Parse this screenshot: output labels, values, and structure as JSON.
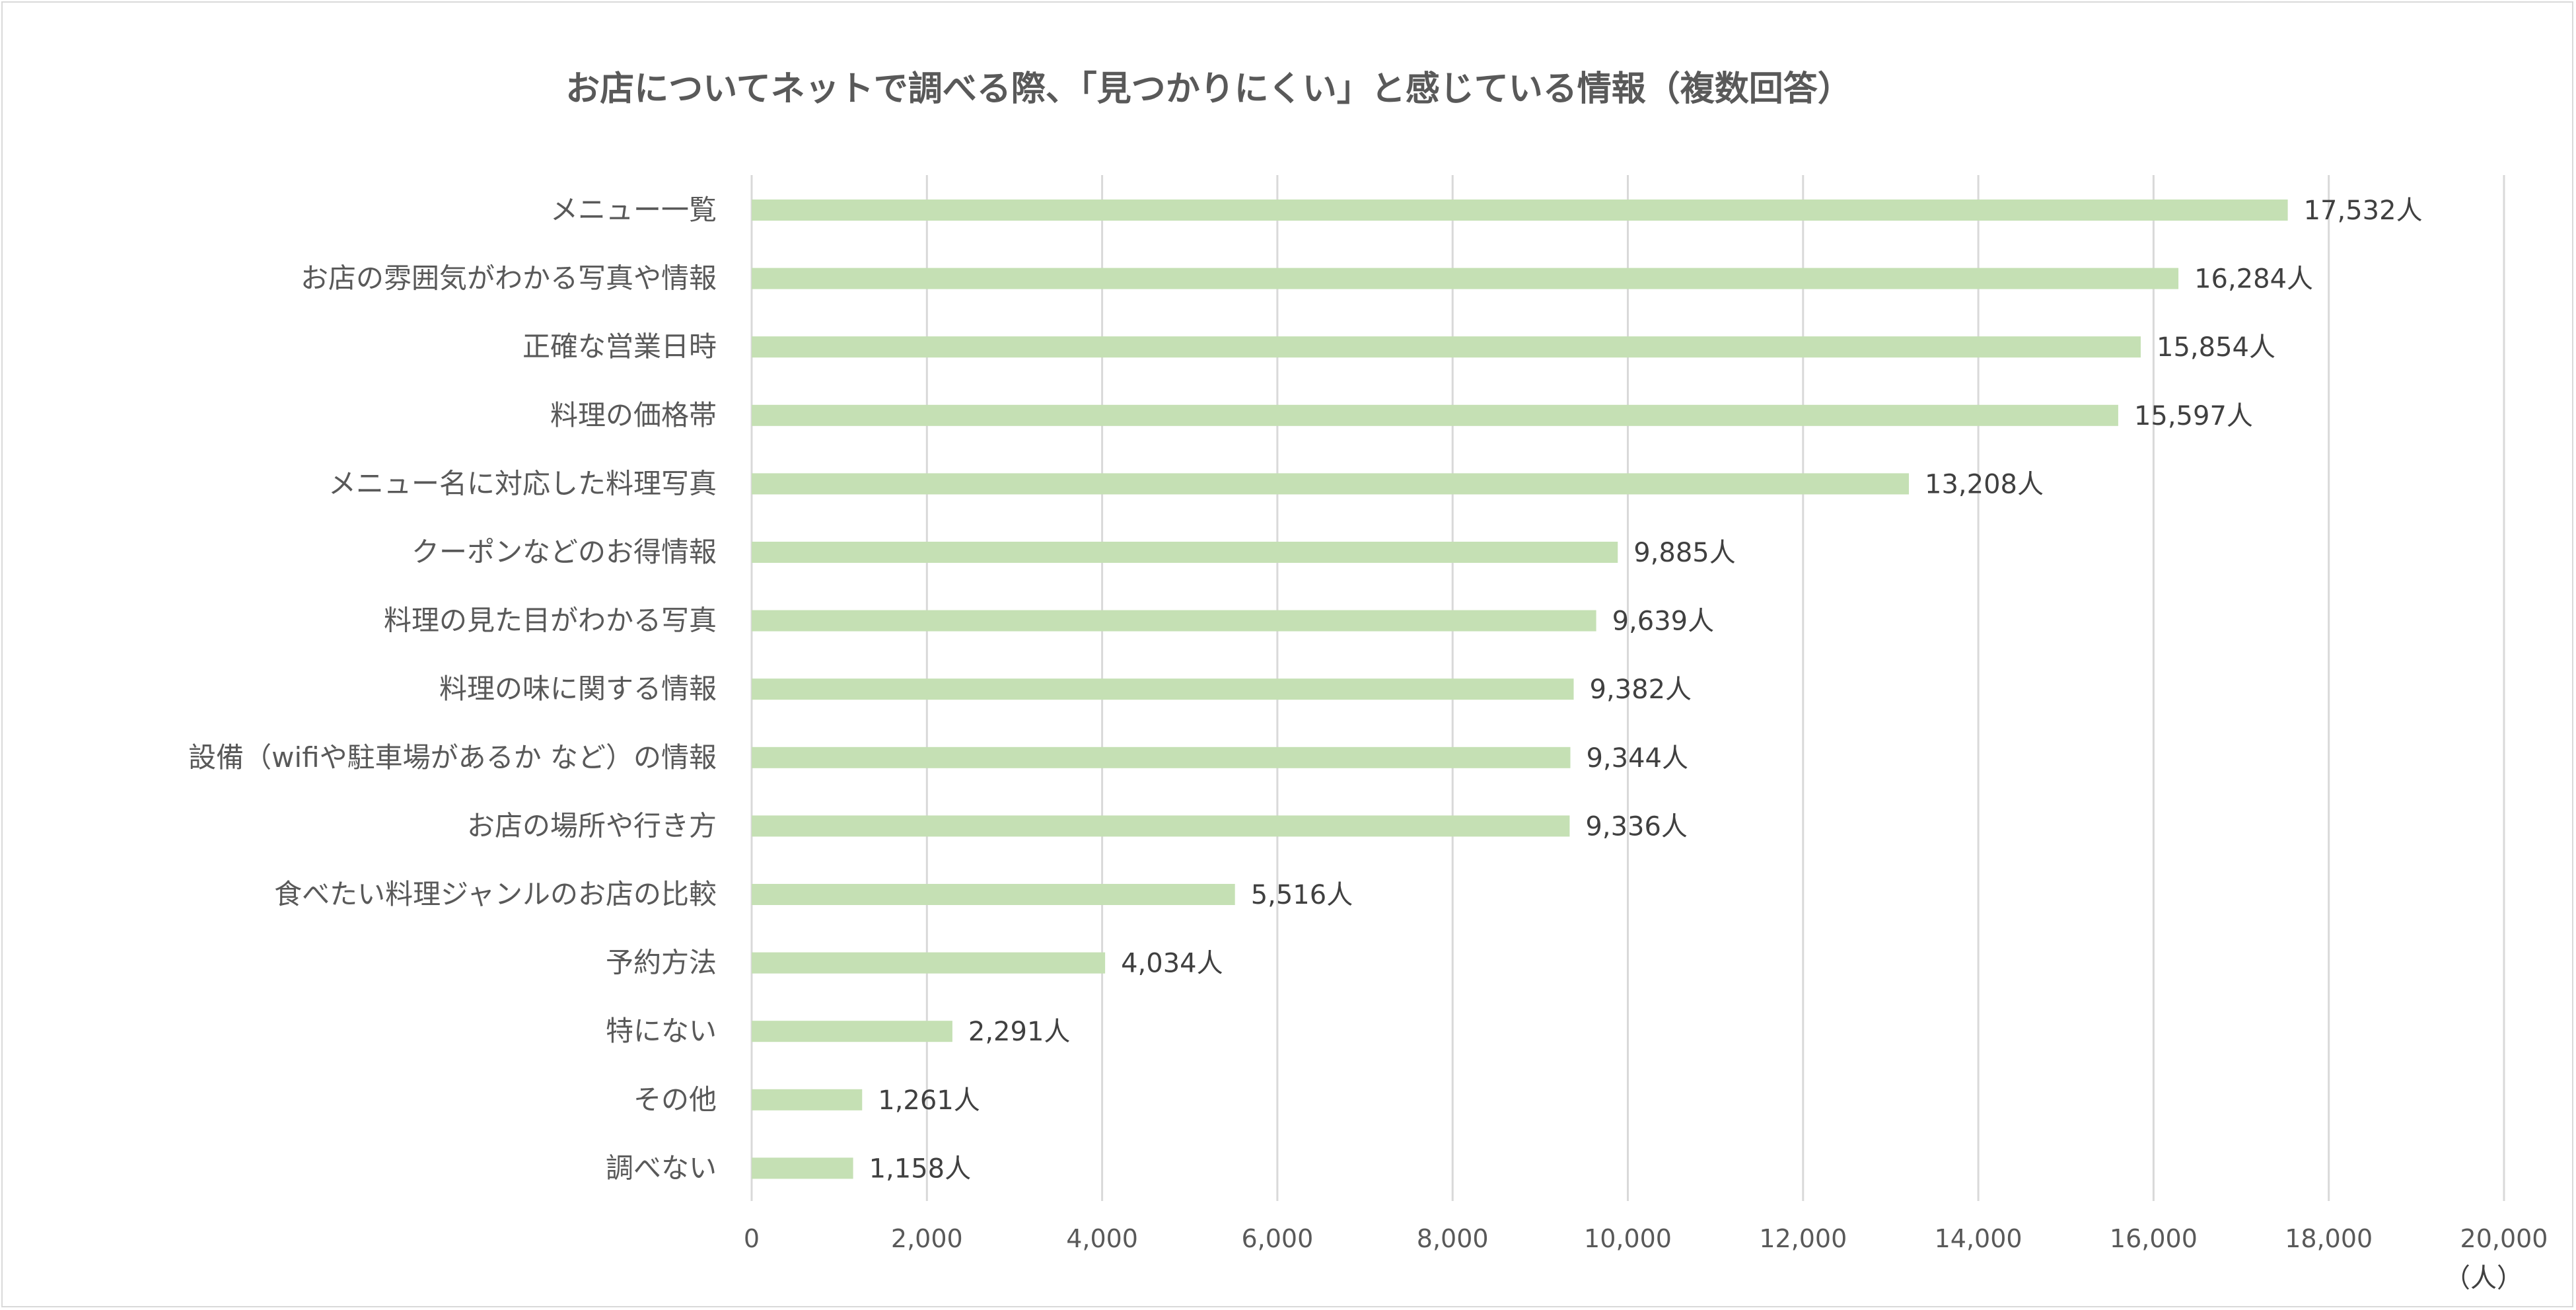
{
  "chart_data": {
    "type": "bar",
    "orientation": "horizontal",
    "title": "お店についてネットで調べる際、「見つかりにくい」と感じている情報（複数回答）",
    "unit_label": "（人）",
    "value_suffix": "人",
    "xlim": [
      0,
      20000
    ],
    "x_ticks": [
      0,
      2000,
      4000,
      6000,
      8000,
      10000,
      12000,
      14000,
      16000,
      18000,
      20000
    ],
    "x_tick_labels": [
      "0",
      "2,000",
      "4,000",
      "6,000",
      "8,000",
      "10,000",
      "12,000",
      "14,000",
      "16,000",
      "18,000",
      "20,000"
    ],
    "grid": true,
    "bar_color": "#c5e0b4",
    "categories": [
      "メニュー一覧",
      "お店の雰囲気がわかる写真や情報",
      "正確な営業日時",
      "料理の価格帯",
      "メニュー名に対応した料理写真",
      "クーポンなどのお得情報",
      "料理の見た目がわかる写真",
      "料理の味に関する情報",
      "設備（wifiや駐車場があるか など）の情報",
      "お店の場所や行き方",
      "食べたい料理ジャンルのお店の比較",
      "予約方法",
      "特にない",
      "その他",
      "調べない"
    ],
    "values": [
      17532,
      16284,
      15854,
      15597,
      13208,
      9885,
      9639,
      9382,
      9344,
      9336,
      5516,
      4034,
      2291,
      1261,
      1158
    ],
    "data_labels": [
      "17,532人",
      "16,284人",
      "15,854人",
      "15,597人",
      "13,208人",
      "9,885人",
      "9,639人",
      "9,382人",
      "9,344人",
      "9,336人",
      "5,516人",
      "4,034人",
      "2,291人",
      "1,261人",
      "1,158人"
    ]
  }
}
